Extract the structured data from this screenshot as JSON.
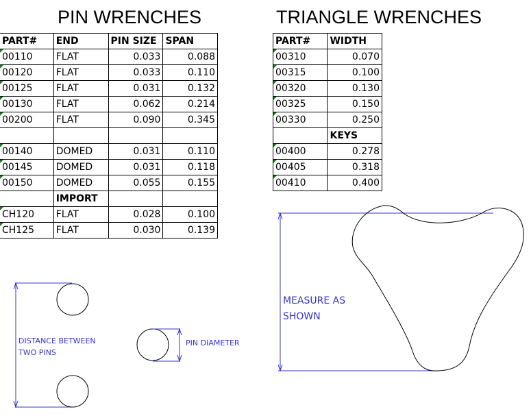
{
  "pin_wrenches": {
    "title": "PIN WRENCHES",
    "headers": [
      "PART#",
      "END",
      "PIN SIZE",
      "SPAN"
    ],
    "rows": [
      [
        "00110",
        "FLAT",
        "0.033",
        "0.088"
      ],
      [
        "00120",
        "FLAT",
        "0.033",
        "0.110"
      ],
      [
        "00125",
        "FLAT",
        "0.031",
        "0.132"
      ],
      [
        "00130",
        "FLAT",
        "0.062",
        "0.214"
      ],
      [
        "00200",
        "FLAT",
        "0.090",
        "0.345"
      ],
      [
        "",
        "",
        "",
        ""
      ],
      [
        "00140",
        "DOMED",
        "0.031",
        "0.110"
      ],
      [
        "00145",
        "DOMED",
        "0.031",
        "0.118"
      ],
      [
        "00150",
        "DOMED",
        "0.055",
        "0.155"
      ],
      [
        "",
        "IMPORT",
        "",
        ""
      ],
      [
        "CH120",
        "FLAT",
        "0.028",
        "0.100"
      ],
      [
        "CH125",
        "FLAT",
        "0.030",
        "0.139"
      ]
    ]
  },
  "triangle_wrenches": {
    "title": "TRIANGLE WRENCHES",
    "headers": [
      "PART#",
      "WIDTH"
    ],
    "rows": [
      [
        "00310",
        "0.070"
      ],
      [
        "00315",
        "0.100"
      ],
      [
        "00320",
        "0.130"
      ],
      [
        "00325",
        "0.150"
      ],
      [
        "00330",
        "0.250"
      ],
      [
        "",
        "KEYS"
      ],
      [
        "00400",
        "0.278"
      ],
      [
        "00405",
        "0.318"
      ],
      [
        "00410",
        "0.400"
      ]
    ]
  },
  "diagrams": {
    "distance_label_1": "DISTANCE BETWEEN",
    "distance_label_2": "TWO PINS",
    "pin_diameter_label": "PIN DIAMETER",
    "measure_label_1": "MEASURE AS",
    "measure_label_2": "SHOWN"
  },
  "colors": {
    "annotation": "#3333cc",
    "cell_marker": "#1a7a1a"
  }
}
